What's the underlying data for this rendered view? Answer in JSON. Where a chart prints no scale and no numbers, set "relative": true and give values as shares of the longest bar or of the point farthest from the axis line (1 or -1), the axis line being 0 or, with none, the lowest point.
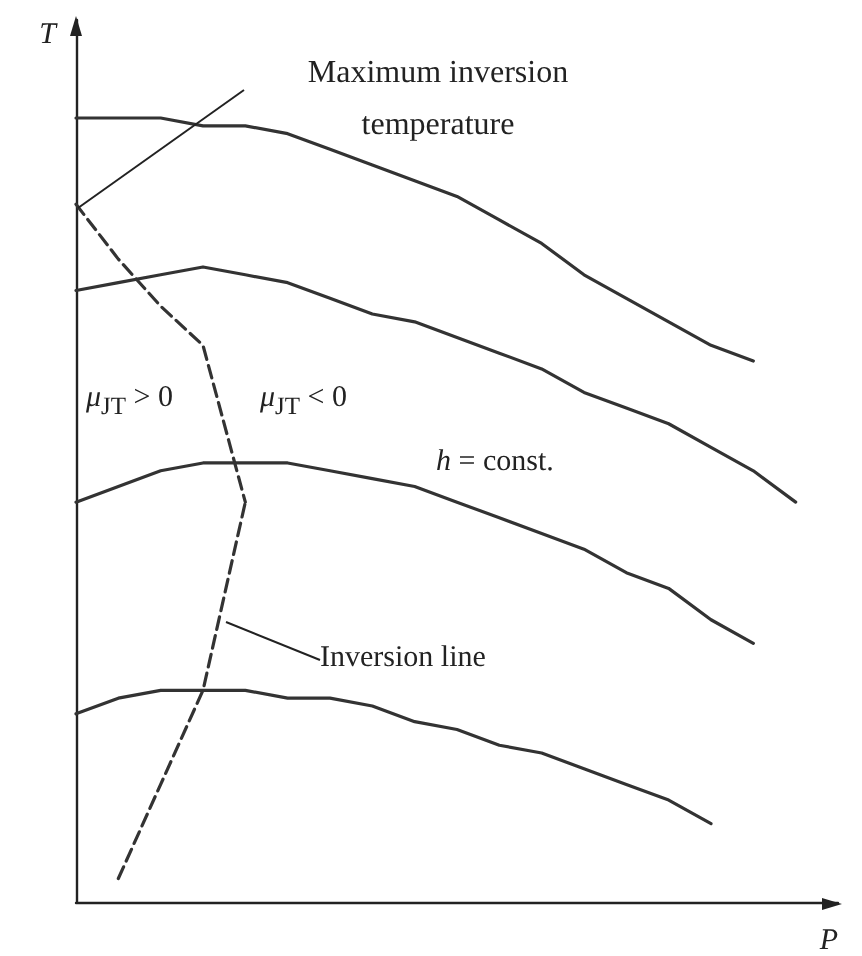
{
  "chart_data": {
    "type": "line",
    "relative": true,
    "xlabel": "P",
    "ylabel": "T",
    "grid": false,
    "marker": "none",
    "line_style": "solid",
    "categories": [
      null,
      null,
      null,
      null,
      null,
      null,
      null,
      null,
      null,
      null,
      null,
      null,
      null,
      null,
      null,
      null,
      null,
      null,
      null
    ],
    "series": [
      {
        "color": "#333333",
        "values": [
          1,
          1,
          1,
          0.99,
          0.99,
          0.98,
          0.96,
          0.94,
          0.92,
          0.9,
          0.87,
          0.84,
          0.8,
          0.77,
          0.74,
          0.71,
          0.69,
          null,
          null
        ]
      },
      {
        "color": "#333333",
        "values": [
          0.78,
          0.79,
          0.8,
          0.81,
          0.8,
          0.79,
          0.77,
          0.75,
          0.74,
          0.72,
          0.7,
          0.68,
          0.65,
          0.63,
          0.61,
          0.58,
          0.55,
          0.51,
          null
        ]
      },
      {
        "color": "#333333",
        "values": [
          0.51,
          0.53,
          0.55,
          0.56,
          0.56,
          0.56,
          0.55,
          0.54,
          0.53,
          0.51,
          0.49,
          0.47,
          0.45,
          0.42,
          0.4,
          0.36,
          0.33,
          null,
          null
        ]
      },
      {
        "color": "#333333",
        "values": [
          0.24,
          0.26,
          0.27,
          0.27,
          0.27,
          0.26,
          0.26,
          0.25,
          0.23,
          0.22,
          0.2,
          0.19,
          0.17,
          0.15,
          0.13,
          0.1,
          null,
          null,
          null
        ]
      },
      {
        "color": "#333333",
        "line_style": "dashed",
        "values": [
          0.89,
          0.82,
          0.76,
          0.71,
          0.51,
          null,
          null,
          null,
          null,
          null,
          null,
          null,
          null,
          null,
          null,
          null,
          null,
          null,
          null
        ]
      },
      {
        "color": "#333333",
        "line_style": "dashed",
        "values": [
          null,
          0.03,
          0.15,
          0.27,
          0.51,
          null,
          null,
          null,
          null,
          null,
          null,
          null,
          null,
          null,
          null,
          null,
          null,
          null,
          null
        ]
      }
    ],
    "annotations": [
      "Maximum inversion temperature",
      "μ$_{JT}$ > 0",
      "μ$_{JT}$ < 0",
      "h = const.",
      "Inversion line"
    ]
  }
}
